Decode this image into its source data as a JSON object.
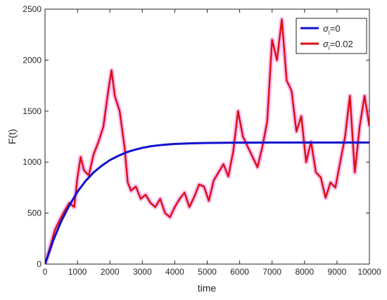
{
  "chart_data": {
    "type": "line",
    "xlabel": "time",
    "ylabel": "F(t)",
    "xlim": [
      0,
      10000
    ],
    "ylim": [
      0,
      2500
    ],
    "xticks": [
      0,
      1000,
      2000,
      3000,
      4000,
      5000,
      6000,
      7000,
      8000,
      9000,
      10000
    ],
    "yticks": [
      0,
      500,
      1000,
      1500,
      2000,
      2500
    ],
    "xtick_labels": [
      "0",
      "1000",
      "2000",
      "3000",
      "4000",
      "5000",
      "6000",
      "7000",
      "8000",
      "9000",
      "10000"
    ],
    "ytick_labels": [
      "0",
      "500",
      "1000",
      "1500",
      "2000",
      "2500"
    ],
    "grid": false,
    "legend_position": "top-right",
    "series": [
      {
        "legend_symbol": "σ",
        "legend_subscript": "i",
        "legend_value": "=0",
        "color": "#1010cc",
        "x": [
          0,
          250,
          500,
          750,
          1000,
          1250,
          1500,
          1750,
          2000,
          2250,
          2500,
          2750,
          3000,
          3250,
          3500,
          3750,
          4000,
          4500,
          5000,
          5500,
          6000,
          6500,
          7000,
          8000,
          9000,
          10000
        ],
        "y": [
          0,
          230,
          420,
          575,
          710,
          815,
          900,
          965,
          1020,
          1060,
          1095,
          1120,
          1140,
          1155,
          1165,
          1172,
          1178,
          1184,
          1188,
          1190,
          1191,
          1191,
          1192,
          1192,
          1192,
          1192
        ]
      },
      {
        "legend_symbol": "σ",
        "legend_subscript": "i",
        "legend_value": "=0.02",
        "color": "#dd1111",
        "halo_color": "#f08cf0",
        "x": [
          0,
          150,
          300,
          450,
          600,
          750,
          900,
          1000,
          1100,
          1200,
          1350,
          1500,
          1650,
          1800,
          1950,
          2050,
          2150,
          2300,
          2450,
          2550,
          2650,
          2800,
          2950,
          3100,
          3250,
          3400,
          3550,
          3700,
          3850,
          4000,
          4150,
          4300,
          4450,
          4600,
          4750,
          4900,
          5050,
          5200,
          5350,
          5500,
          5650,
          5800,
          5950,
          6100,
          6250,
          6400,
          6550,
          6700,
          6850,
          7000,
          7150,
          7300,
          7450,
          7600,
          7750,
          7900,
          8050,
          8200,
          8350,
          8500,
          8650,
          8800,
          8950,
          9100,
          9250,
          9400,
          9550,
          9700,
          9850,
          10000
        ],
        "y": [
          0,
          160,
          330,
          430,
          520,
          600,
          560,
          850,
          1050,
          920,
          870,
          1080,
          1200,
          1350,
          1700,
          1900,
          1650,
          1500,
          1150,
          800,
          720,
          760,
          640,
          680,
          600,
          560,
          640,
          500,
          460,
          560,
          640,
          700,
          560,
          660,
          780,
          760,
          620,
          820,
          900,
          980,
          860,
          1100,
          1500,
          1250,
          1150,
          1050,
          950,
          1150,
          1400,
          2200,
          2000,
          2400,
          1800,
          1700,
          1300,
          1450,
          1000,
          1200,
          900,
          850,
          650,
          800,
          750,
          1000,
          1250,
          1650,
          900,
          1350,
          1650,
          1350
        ]
      }
    ]
  }
}
